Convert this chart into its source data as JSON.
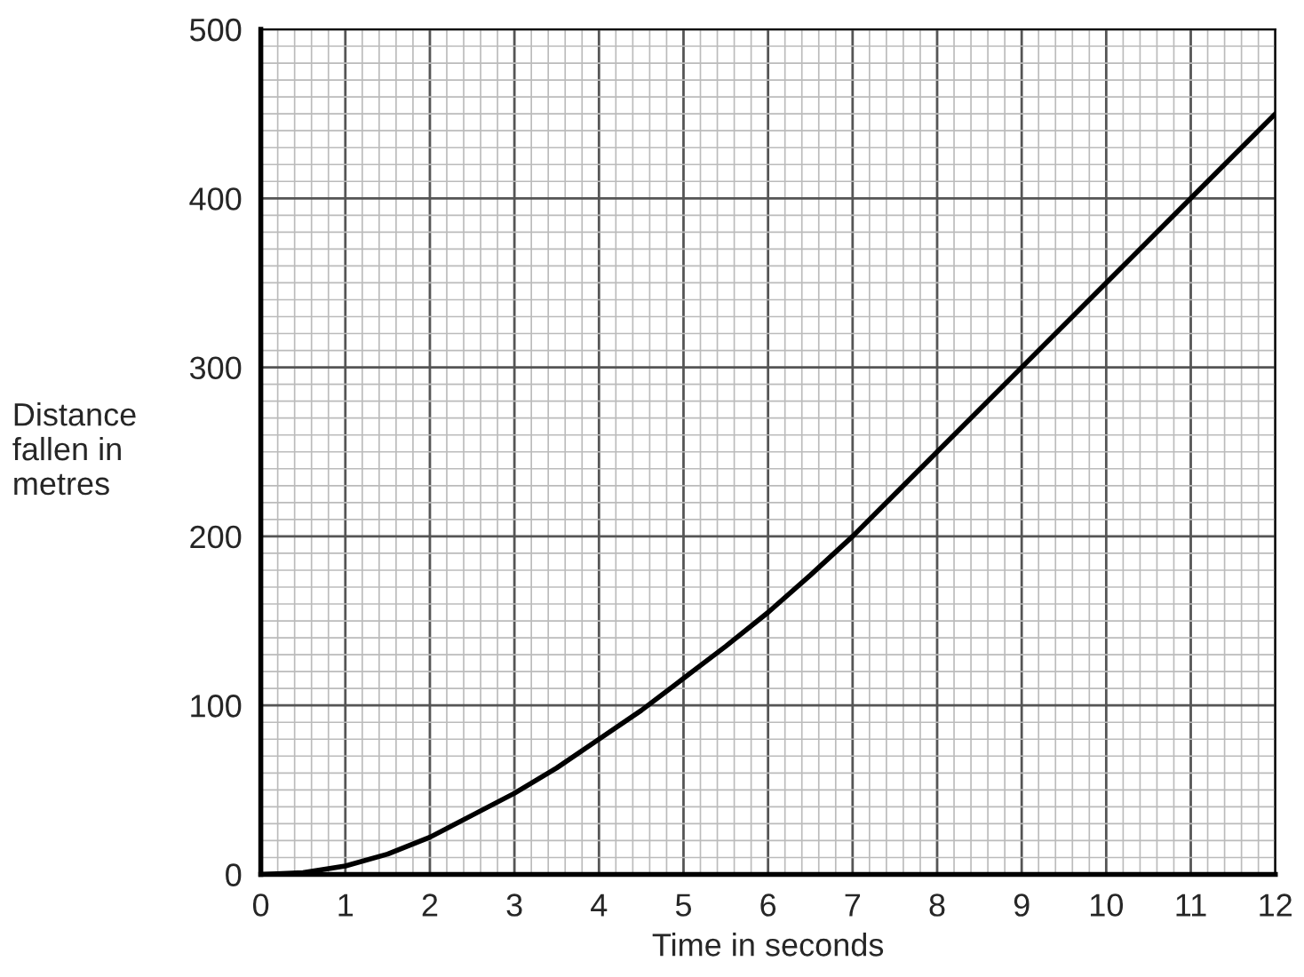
{
  "chart_data": {
    "type": "line",
    "xlabel": "Time in seconds",
    "ylabel": "Distance\nfallen in\nmetres",
    "x": [
      0,
      0.5,
      1,
      1.5,
      2,
      2.5,
      3,
      3.5,
      4,
      4.5,
      5,
      5.5,
      6,
      6.5,
      7,
      8,
      9,
      10,
      11,
      12
    ],
    "series": [
      {
        "color": "#000000",
        "values": [
          0,
          1,
          5,
          12,
          22,
          35,
          48,
          63,
          80,
          97,
          116,
          135,
          155,
          177,
          200,
          250,
          300,
          350,
          400,
          450
        ]
      }
    ],
    "xlim": [
      0,
      12
    ],
    "ylim": [
      0,
      500
    ],
    "xticks": [
      0,
      1,
      2,
      3,
      4,
      5,
      6,
      7,
      8,
      9,
      10,
      11,
      12
    ],
    "yticks": [
      0,
      100,
      200,
      300,
      400,
      500
    ],
    "grid": true,
    "legend": false,
    "marker": "none",
    "line_style": "solid"
  }
}
